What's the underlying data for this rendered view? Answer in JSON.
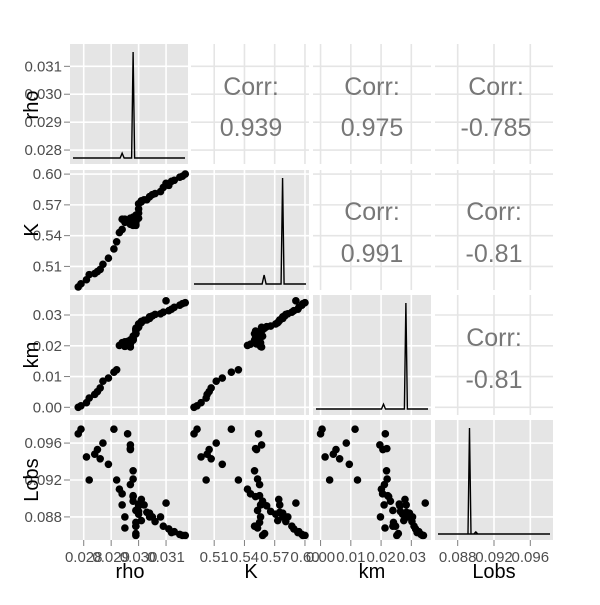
{
  "chart_data": {
    "type": "scatter",
    "title": "",
    "variables": [
      "rho",
      "K",
      "km",
      "Lobs"
    ],
    "panel_background": "#e5e5e5",
    "grid_color": "#ffffff",
    "point_color": "#000000",
    "grid": true,
    "ranges": {
      "rho": [
        0.0275,
        0.0318
      ],
      "K": [
        0.487,
        0.604
      ],
      "km": [
        -0.0025,
        0.0365
      ],
      "Lobs": [
        0.0855,
        0.0985
      ]
    },
    "ticks": {
      "rho": {
        "values": [
          0.028,
          0.029,
          0.03,
          0.031
        ],
        "labels": [
          "0.028",
          "0.029",
          "0.030",
          "0.031"
        ]
      },
      "K": {
        "values": [
          0.51,
          0.54,
          0.57,
          0.6
        ],
        "labels": [
          "0.51",
          "0.54",
          "0.57",
          "0.60"
        ]
      },
      "km": {
        "values": [
          0.0,
          0.01,
          0.02,
          0.03
        ],
        "labels": [
          "0.00",
          "0.01",
          "0.02",
          "0.03"
        ]
      },
      "Lobs": {
        "values": [
          0.088,
          0.092,
          0.096
        ],
        "labels": [
          "0.088",
          "0.092",
          "0.096"
        ]
      }
    },
    "correlations": {
      "label": "Corr:",
      "rho_K": "0.939",
      "rho_km": "0.975",
      "rho_Lobs": "-0.785",
      "K_km": "0.991",
      "K_Lobs": "-0.81",
      "km_Lobs": "-0.81"
    },
    "points": {
      "rho": [
        0.0278,
        0.0279,
        0.0281,
        0.0282,
        0.0284,
        0.0285,
        0.0286,
        0.0287,
        0.0289,
        0.0291,
        0.0292,
        0.0293,
        0.0294,
        0.0294,
        0.0295,
        0.0295,
        0.0296,
        0.0297,
        0.0297,
        0.0297,
        0.0297,
        0.0298,
        0.0298,
        0.0298,
        0.0298,
        0.0298,
        0.0299,
        0.0299,
        0.0299,
        0.0299,
        0.0299,
        0.0299,
        0.03,
        0.03,
        0.03,
        0.03,
        0.0301,
        0.0301,
        0.0302,
        0.0303,
        0.0304,
        0.0304,
        0.0305,
        0.0306,
        0.0308,
        0.0309,
        0.0311,
        0.0312,
        0.0313,
        0.0315,
        0.0316,
        0.0317,
        0.031
      ],
      "K": [
        0.49,
        0.493,
        0.497,
        0.502,
        0.503,
        0.505,
        0.507,
        0.512,
        0.518,
        0.527,
        0.534,
        0.543,
        0.546,
        0.556,
        0.556,
        0.553,
        0.554,
        0.557,
        0.551,
        0.552,
        0.555,
        0.55,
        0.553,
        0.555,
        0.551,
        0.558,
        0.55,
        0.553,
        0.555,
        0.551,
        0.558,
        0.56,
        0.557,
        0.562,
        0.566,
        0.571,
        0.573,
        0.574,
        0.575,
        0.575,
        0.578,
        0.578,
        0.58,
        0.581,
        0.583,
        0.587,
        0.589,
        0.593,
        0.594,
        0.597,
        0.598,
        0.6,
        0.591
      ],
      "km": [
        0.0,
        0.0005,
        0.0015,
        0.003,
        0.0042,
        0.0051,
        0.0063,
        0.0085,
        0.0095,
        0.0114,
        0.0122,
        0.0201,
        0.0205,
        0.021,
        0.0198,
        0.0213,
        0.0214,
        0.0196,
        0.0219,
        0.0206,
        0.0211,
        0.0218,
        0.022,
        0.0222,
        0.0225,
        0.0231,
        0.0239,
        0.0239,
        0.0241,
        0.0248,
        0.0252,
        0.0257,
        0.026,
        0.0262,
        0.0264,
        0.0271,
        0.0275,
        0.0279,
        0.0283,
        0.0284,
        0.0289,
        0.0294,
        0.0297,
        0.0302,
        0.0304,
        0.0309,
        0.0314,
        0.0319,
        0.0325,
        0.0332,
        0.0337,
        0.034,
        0.0346
      ],
      "Lobs": [
        0.097,
        0.0975,
        0.0945,
        0.092,
        0.0948,
        0.0953,
        0.0943,
        0.096,
        0.0937,
        0.0975,
        0.092,
        0.091,
        0.0905,
        0.0893,
        0.088,
        0.0868,
        0.097,
        0.0958,
        0.0954,
        0.0953,
        0.0915,
        0.093,
        0.0921,
        0.0903,
        0.0902,
        0.0897,
        0.087,
        0.0887,
        0.0874,
        0.087,
        0.086,
        0.0862,
        0.0894,
        0.0892,
        0.0886,
        0.0883,
        0.0876,
        0.0899,
        0.0893,
        0.0885,
        0.088,
        0.0884,
        0.088,
        0.0875,
        0.088,
        0.087,
        0.0867,
        0.0863,
        0.0864,
        0.0861,
        0.086,
        0.086,
        0.0895
      ]
    },
    "densities": {
      "rho": {
        "peak_x": 0.0298,
        "peak_height": 1.0,
        "minor_x": 0.0294,
        "minor_height": 0.045
      },
      "K": {
        "peak_x": 0.5778,
        "peak_height": 1.0,
        "minor_x": 0.5595,
        "minor_height": 0.085
      },
      "km": {
        "peak_x": 0.0282,
        "peak_height": 1.0,
        "minor_x": 0.0208,
        "minor_height": 0.045
      },
      "Lobs": {
        "peak_x": 0.0893,
        "peak_height": 1.0,
        "minor_x": 0.09,
        "minor_height": 0.02
      }
    },
    "axis_titles": [
      "rho",
      "K",
      "km",
      "Lobs"
    ]
  }
}
